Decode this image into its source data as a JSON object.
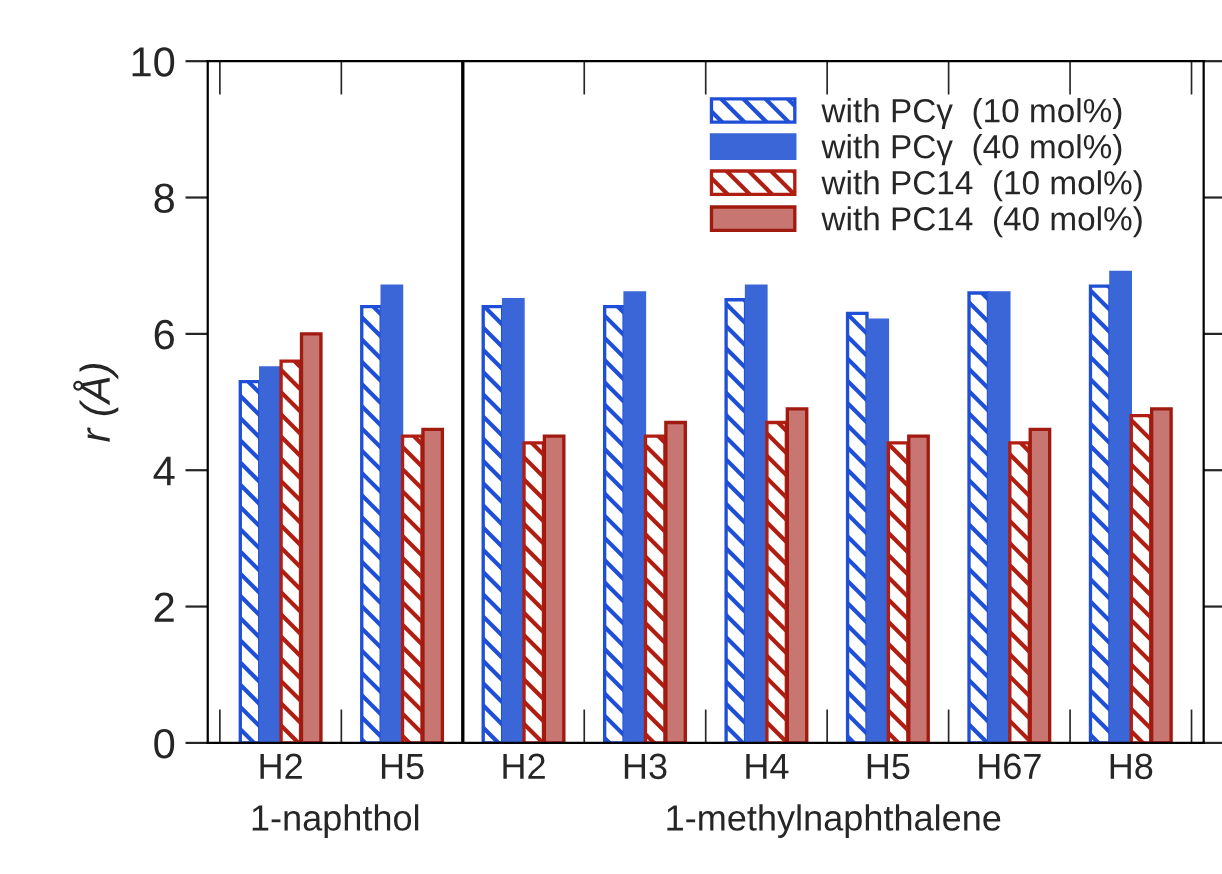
{
  "chart_data": {
    "type": "bar",
    "ylabel": "r (Å)",
    "categories": [
      "H2",
      "H5",
      "H2",
      "H3",
      "H4",
      "H5",
      "H67",
      "H8"
    ],
    "series": [
      {
        "name": "with PCγ  (10 mol%)",
        "color": "#1f4fd6",
        "values": [
          5.3,
          6.4,
          6.4,
          6.4,
          6.5,
          6.3,
          6.6,
          6.7
        ]
      },
      {
        "name": "with PCγ  (40 mol%)",
        "color": "#3a66d8",
        "values": [
          5.5,
          6.7,
          6.5,
          6.6,
          6.7,
          6.2,
          6.6,
          6.9
        ]
      },
      {
        "name": "with PC14  (10 mol%)",
        "color": "#b01e12",
        "values": [
          5.6,
          4.5,
          4.4,
          4.5,
          4.7,
          4.4,
          4.4,
          4.8
        ]
      },
      {
        "name": "with PC14  (40 mol%)",
        "color": "#c87672",
        "values": [
          6.0,
          4.6,
          4.5,
          4.7,
          4.9,
          4.5,
          4.6,
          4.9
        ]
      }
    ],
    "ylim": [
      0,
      10
    ],
    "yticks": [
      0,
      2,
      4,
      6,
      8,
      10
    ],
    "annotations": [
      "1-naphthol",
      "1-methylnaphthalene"
    ],
    "legend": "top right",
    "grid": false
  }
}
